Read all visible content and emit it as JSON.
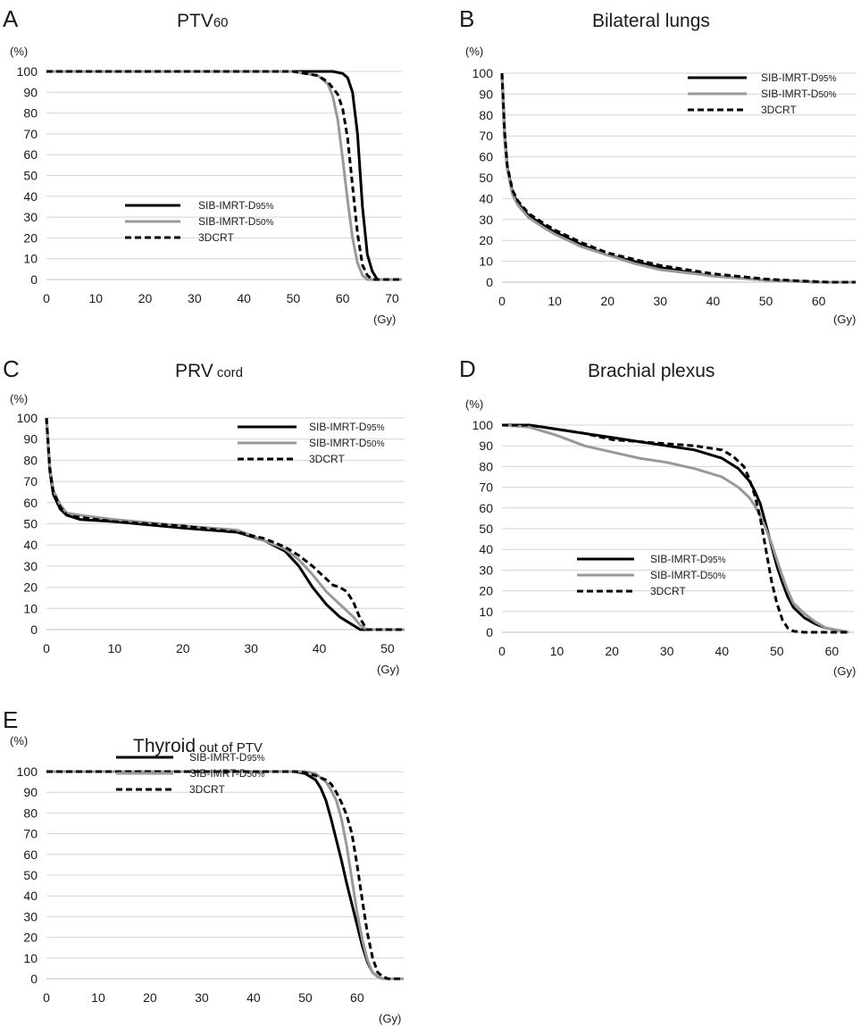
{
  "colors": {
    "SIB-IMRT-D95%": "#000000",
    "SIB-IMRT-D50%": "#999999",
    "3DCRT": "#000000"
  },
  "line_styles": {
    "SIB-IMRT-D95%": "solid",
    "SIB-IMRT-D50%": "solid",
    "3DCRT": "dashed"
  },
  "chart_data": [
    {
      "panel": "A",
      "type": "line",
      "title": "PTV",
      "title_sub": "60",
      "ylabel": "(%)",
      "xlabel": "(Gy)",
      "xlim": [
        0,
        72
      ],
      "ylim": [
        0,
        100
      ],
      "xticks": [
        0,
        10,
        20,
        30,
        40,
        50,
        60,
        70
      ],
      "yticks": [
        0,
        10,
        20,
        30,
        40,
        50,
        60,
        70,
        80,
        90,
        100
      ],
      "grid": true,
      "legend_position": "middle-center",
      "series": [
        {
          "name": "SIB-IMRT-D95%",
          "legend_main": "SIB-IMRT-D",
          "legend_sub": "95%",
          "x": [
            0,
            50,
            58,
            60,
            61,
            62,
            63,
            64,
            65,
            66,
            67,
            72
          ],
          "y": [
            100,
            100,
            100,
            99,
            97,
            90,
            70,
            35,
            12,
            4,
            0,
            0
          ]
        },
        {
          "name": "SIB-IMRT-D50%",
          "legend_main": "SIB-IMRT-D",
          "legend_sub": "50%",
          "x": [
            0,
            50,
            55,
            57,
            58,
            59,
            60,
            61,
            62,
            63,
            64,
            65,
            66,
            72
          ],
          "y": [
            100,
            100,
            98,
            94,
            88,
            77,
            58,
            38,
            20,
            8,
            2,
            0,
            0,
            0
          ]
        },
        {
          "name": "3DCRT",
          "legend_main": "3DCRT",
          "legend_sub": "",
          "x": [
            0,
            50,
            55,
            57,
            59,
            60,
            61,
            62,
            63,
            64,
            65,
            66,
            72
          ],
          "y": [
            100,
            100,
            98,
            95,
            89,
            82,
            68,
            45,
            22,
            7,
            2,
            0,
            0
          ]
        }
      ]
    },
    {
      "panel": "B",
      "type": "line",
      "title": "Bilateral lungs",
      "title_sub": "",
      "ylabel": "(%)",
      "xlabel": "(Gy)",
      "xlim": [
        0,
        67
      ],
      "ylim": [
        0,
        100
      ],
      "xticks": [
        0,
        10,
        20,
        30,
        40,
        50,
        60
      ],
      "yticks": [
        0,
        10,
        20,
        30,
        40,
        50,
        60,
        70,
        80,
        90,
        100
      ],
      "grid": true,
      "legend_position": "top-right",
      "series": [
        {
          "name": "SIB-IMRT-D95%",
          "legend_main": "SIB-IMRT-D",
          "legend_sub": "95%",
          "x": [
            0,
            0.5,
            1,
            2,
            3,
            5,
            8,
            10,
            15,
            20,
            25,
            30,
            40,
            50,
            55,
            60,
            62,
            67
          ],
          "y": [
            100,
            70,
            55,
            43,
            38,
            32,
            27,
            24,
            18,
            13,
            10,
            7,
            3,
            1,
            0.5,
            0,
            0,
            0
          ]
        },
        {
          "name": "SIB-IMRT-D50%",
          "legend_main": "SIB-IMRT-D",
          "legend_sub": "50%",
          "x": [
            0,
            0.5,
            1,
            2,
            3,
            5,
            8,
            10,
            15,
            20,
            25,
            30,
            40,
            50,
            55,
            60,
            62,
            67
          ],
          "y": [
            100,
            68,
            54,
            42,
            37,
            31,
            26,
            23,
            17,
            13,
            9,
            6,
            3,
            1,
            0.5,
            0,
            0,
            0
          ]
        },
        {
          "name": "3DCRT",
          "legend_main": "3DCRT",
          "legend_sub": "",
          "x": [
            0,
            0.5,
            1,
            2,
            3,
            5,
            8,
            10,
            15,
            20,
            25,
            30,
            40,
            50,
            55,
            60,
            62,
            67
          ],
          "y": [
            100,
            72,
            56,
            44,
            39,
            33,
            28,
            25,
            19,
            14,
            11,
            8,
            4,
            1.5,
            0.8,
            0.2,
            0,
            0
          ]
        }
      ]
    },
    {
      "panel": "C",
      "type": "line",
      "title": "PRV",
      "title_sub": "cord",
      "ylabel": "(%)",
      "xlabel": "(Gy)",
      "xlim": [
        0,
        52.5
      ],
      "ylim": [
        0,
        100
      ],
      "xticks": [
        0,
        10,
        20,
        30,
        40,
        50
      ],
      "yticks": [
        0,
        10,
        20,
        30,
        40,
        50,
        60,
        70,
        80,
        90,
        100
      ],
      "grid": true,
      "legend_position": "top-right",
      "series": [
        {
          "name": "SIB-IMRT-D95%",
          "legend_main": "SIB-IMRT-D",
          "legend_sub": "95%",
          "x": [
            0,
            0.5,
            1,
            2,
            3,
            5,
            10,
            20,
            28,
            32,
            35,
            37,
            39,
            41,
            43,
            45,
            46,
            47,
            52.5
          ],
          "y": [
            100,
            75,
            64,
            57,
            54,
            52,
            51,
            48,
            46,
            42,
            37,
            30,
            20,
            12,
            6,
            2,
            0,
            0,
            0
          ]
        },
        {
          "name": "SIB-IMRT-D50%",
          "legend_main": "SIB-IMRT-D",
          "legend_sub": "50%",
          "x": [
            0,
            0.5,
            1,
            2,
            3,
            5,
            10,
            20,
            28,
            32,
            35,
            37,
            39,
            41,
            43,
            45,
            46,
            47,
            52.5
          ],
          "y": [
            100,
            77,
            66,
            59,
            55,
            54,
            52,
            49,
            47,
            42,
            38,
            33,
            26,
            18,
            12,
            6,
            2,
            0,
            0
          ]
        },
        {
          "name": "3DCRT",
          "legend_main": "3DCRT",
          "legend_sub": "",
          "x": [
            0,
            0.5,
            1,
            2,
            3,
            5,
            10,
            20,
            28,
            32,
            35,
            37,
            39,
            41,
            42,
            43,
            44,
            45,
            46,
            47,
            52.5
          ],
          "y": [
            100,
            76,
            65,
            58,
            54,
            53,
            51,
            49,
            46,
            43,
            39,
            35,
            30,
            24,
            21,
            20,
            18,
            13,
            5,
            0,
            0
          ]
        }
      ]
    },
    {
      "panel": "D",
      "type": "line",
      "title": "Brachial plexus",
      "title_sub": "",
      "ylabel": "(%)",
      "xlabel": "(Gy)",
      "xlim": [
        0,
        64
      ],
      "ylim": [
        0,
        100
      ],
      "xticks": [
        0,
        10,
        20,
        30,
        40,
        50,
        60
      ],
      "yticks": [
        0,
        10,
        20,
        30,
        40,
        50,
        60,
        70,
        80,
        90,
        100
      ],
      "grid": true,
      "legend_position": "bottom-center",
      "series": [
        {
          "name": "SIB-IMRT-D95%",
          "legend_main": "SIB-IMRT-D",
          "legend_sub": "95%",
          "x": [
            0,
            5,
            10,
            15,
            20,
            25,
            30,
            35,
            40,
            43,
            45,
            46,
            47,
            48,
            49,
            50,
            51,
            52,
            53,
            55,
            57,
            59,
            61,
            63
          ],
          "y": [
            100,
            100,
            98,
            96,
            94,
            92,
            90,
            88,
            84,
            79,
            73,
            68,
            62,
            52,
            42,
            32,
            24,
            17,
            12,
            7,
            4,
            2,
            1,
            0
          ]
        },
        {
          "name": "SIB-IMRT-D50%",
          "legend_main": "SIB-IMRT-D",
          "legend_sub": "50%",
          "x": [
            0,
            5,
            10,
            15,
            20,
            25,
            30,
            35,
            40,
            43,
            45,
            46,
            47,
            48,
            49,
            50,
            51,
            52,
            53,
            55,
            57,
            59,
            61,
            63
          ],
          "y": [
            100,
            99,
            95,
            90,
            87,
            84,
            82,
            79,
            75,
            70,
            65,
            61,
            56,
            50,
            43,
            35,
            27,
            20,
            14,
            9,
            5,
            2,
            1,
            0
          ]
        },
        {
          "name": "3DCRT",
          "legend_main": "3DCRT",
          "legend_sub": "",
          "x": [
            0,
            5,
            10,
            15,
            20,
            25,
            30,
            35,
            40,
            42,
            44,
            45,
            46,
            47,
            48,
            49,
            50,
            51,
            52,
            53,
            55,
            63
          ],
          "y": [
            100,
            100,
            98,
            96,
            93,
            92,
            91,
            90,
            88,
            85,
            80,
            74,
            66,
            55,
            40,
            25,
            14,
            6,
            2,
            0.5,
            0,
            0
          ]
        }
      ]
    },
    {
      "panel": "E",
      "type": "line",
      "title": "Thyroid",
      "title_sub": "out of PTV",
      "ylabel": "(%)",
      "xlabel": "(Gy)",
      "xlim": [
        0,
        69
      ],
      "ylim": [
        0,
        100
      ],
      "xticks": [
        0,
        10,
        20,
        30,
        40,
        50,
        60
      ],
      "yticks": [
        0,
        10,
        20,
        30,
        40,
        50,
        60,
        70,
        80,
        90,
        100
      ],
      "grid": true,
      "legend_position": "bottom-center",
      "series": [
        {
          "name": "SIB-IMRT-D95%",
          "legend_main": "SIB-IMRT-D",
          "legend_sub": "95%",
          "x": [
            0,
            48,
            50,
            52,
            53,
            54,
            55,
            56,
            57,
            58,
            59,
            60,
            61,
            62,
            63,
            64,
            65,
            66,
            69
          ],
          "y": [
            100,
            100,
            99,
            96,
            92,
            86,
            77,
            67,
            57,
            46,
            36,
            26,
            16,
            8,
            3,
            1,
            0,
            0,
            0
          ]
        },
        {
          "name": "SIB-IMRT-D50%",
          "legend_main": "SIB-IMRT-D",
          "legend_sub": "50%",
          "x": [
            0,
            48,
            50,
            52,
            53,
            54,
            55,
            56,
            57,
            58,
            59,
            60,
            61,
            62,
            63,
            64,
            65,
            66,
            69
          ],
          "y": [
            100,
            100,
            100,
            99,
            97,
            95,
            91,
            86,
            77,
            64,
            48,
            32,
            19,
            9,
            3,
            1,
            0,
            0,
            0
          ]
        },
        {
          "name": "3DCRT",
          "legend_main": "3DCRT",
          "legend_sub": "",
          "x": [
            0,
            48,
            50,
            52,
            54,
            55,
            56,
            57,
            58,
            59,
            60,
            61,
            62,
            63,
            64,
            65,
            66,
            69
          ],
          "y": [
            100,
            100,
            99.5,
            98,
            96,
            94,
            90,
            85,
            79,
            70,
            55,
            38,
            22,
            10,
            3,
            1,
            0,
            0
          ]
        }
      ]
    }
  ]
}
